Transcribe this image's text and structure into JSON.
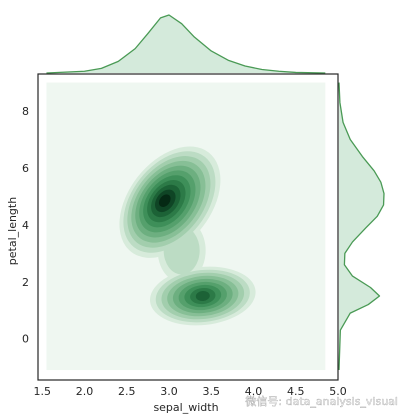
{
  "chart_data": {
    "type": "kde-jointplot",
    "xlabel": "sepal_width",
    "ylabel": "petal_length",
    "xlim": [
      1.45,
      5.0
    ],
    "ylim": [
      -1.45,
      9.3
    ],
    "x_ticks": [
      "1.5",
      "2.0",
      "2.5",
      "3.0",
      "3.5",
      "4.0",
      "4.5",
      "5.0"
    ],
    "y_ticks": [
      "0",
      "2",
      "4",
      "6",
      "8"
    ],
    "grid": false,
    "kde_support": {
      "x_range": [
        1.55,
        4.85
      ],
      "y_range": [
        -1.1,
        9.0
      ]
    },
    "density_peaks": [
      {
        "x": 2.95,
        "y": 4.85,
        "relative_density": 1.0
      },
      {
        "x": 3.4,
        "y": 1.5,
        "relative_density": 0.78
      }
    ],
    "marginal_x": {
      "values_x": [
        1.55,
        2.0,
        2.2,
        2.4,
        2.6,
        2.75,
        2.9,
        3.0,
        3.15,
        3.3,
        3.5,
        3.7,
        3.9,
        4.1,
        4.3,
        4.5,
        4.85
      ],
      "density": [
        0.0,
        0.03,
        0.08,
        0.2,
        0.42,
        0.68,
        0.95,
        1.0,
        0.85,
        0.62,
        0.38,
        0.22,
        0.12,
        0.06,
        0.03,
        0.01,
        0.0
      ]
    },
    "marginal_y": {
      "values_y": [
        -1.1,
        0.3,
        0.9,
        1.2,
        1.5,
        1.8,
        2.2,
        2.6,
        3.0,
        3.4,
        3.9,
        4.3,
        4.7,
        5.1,
        5.5,
        5.9,
        6.4,
        7.0,
        7.6,
        8.3,
        9.0
      ],
      "density": [
        0.0,
        0.03,
        0.25,
        0.65,
        0.9,
        0.7,
        0.3,
        0.12,
        0.13,
        0.3,
        0.6,
        0.85,
        0.99,
        1.0,
        0.93,
        0.78,
        0.52,
        0.25,
        0.09,
        0.02,
        0.0
      ]
    },
    "colors": {
      "line": "#4a9a55",
      "marginal_fill": "#d4eadb",
      "background_level": "#eff7f1",
      "levels": [
        "#d7ebdb",
        "#bcdcc4",
        "#a2cead",
        "#87bf96",
        "#6daf80",
        "#55a06c",
        "#3e8f59",
        "#2c7a47",
        "#1c6236",
        "#0f4525",
        "#052914"
      ]
    }
  },
  "watermark": {
    "text": "微信号: data_analysis_visual"
  }
}
